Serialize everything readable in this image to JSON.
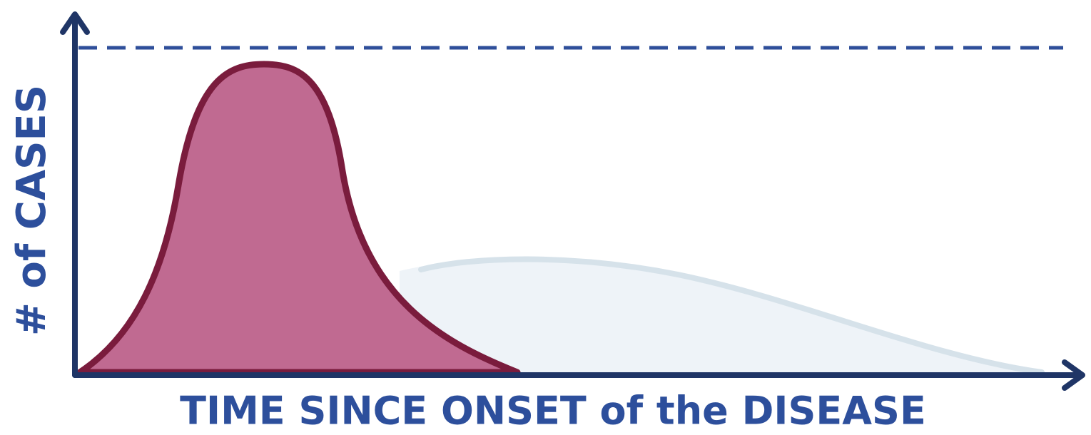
{
  "axis_labels": {
    "y": "# of CASES",
    "x": "TIME SINCE ONSET of the DISEASE"
  }
}
